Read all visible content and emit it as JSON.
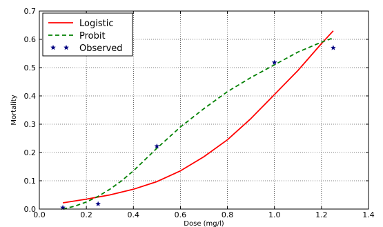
{
  "chart_data": {
    "type": "line",
    "title": "",
    "xlabel": "Dose (mg/l)",
    "ylabel": "Mortality",
    "xlim": [
      0.0,
      1.4
    ],
    "ylim": [
      0.0,
      0.7
    ],
    "x_ticks": [
      "0.0",
      "0.2",
      "0.4",
      "0.6",
      "0.8",
      "1.0",
      "1.2",
      "1.4"
    ],
    "y_ticks": [
      "0.0",
      "0.1",
      "0.2",
      "0.3",
      "0.4",
      "0.5",
      "0.6",
      "0.7"
    ],
    "grid": true,
    "legend_position": "top-left",
    "series": [
      {
        "name": "Logistic",
        "style": "solid-line",
        "color": "#ff0000",
        "x": [
          0.1,
          0.2,
          0.3,
          0.4,
          0.5,
          0.6,
          0.7,
          0.8,
          0.9,
          1.0,
          1.1,
          1.2,
          1.25
        ],
        "y": [
          0.022,
          0.035,
          0.05,
          0.07,
          0.097,
          0.135,
          0.185,
          0.245,
          0.32,
          0.405,
          0.49,
          0.585,
          0.63
        ]
      },
      {
        "name": "Probit",
        "style": "dashed-line",
        "color": "#008000",
        "x": [
          0.1,
          0.15,
          0.2,
          0.25,
          0.3,
          0.35,
          0.4,
          0.45,
          0.5,
          0.6,
          0.7,
          0.8,
          0.9,
          1.0,
          1.1,
          1.2,
          1.25
        ],
        "y": [
          0.0,
          0.01,
          0.025,
          0.045,
          0.07,
          0.1,
          0.135,
          0.175,
          0.215,
          0.29,
          0.355,
          0.415,
          0.465,
          0.51,
          0.555,
          0.59,
          0.605
        ]
      },
      {
        "name": "Observed",
        "style": "star-markers",
        "color": "#000080",
        "x": [
          0.1,
          0.25,
          0.5,
          1.0,
          1.25
        ],
        "y": [
          0.005,
          0.018,
          0.222,
          0.518,
          0.57
        ]
      }
    ]
  }
}
